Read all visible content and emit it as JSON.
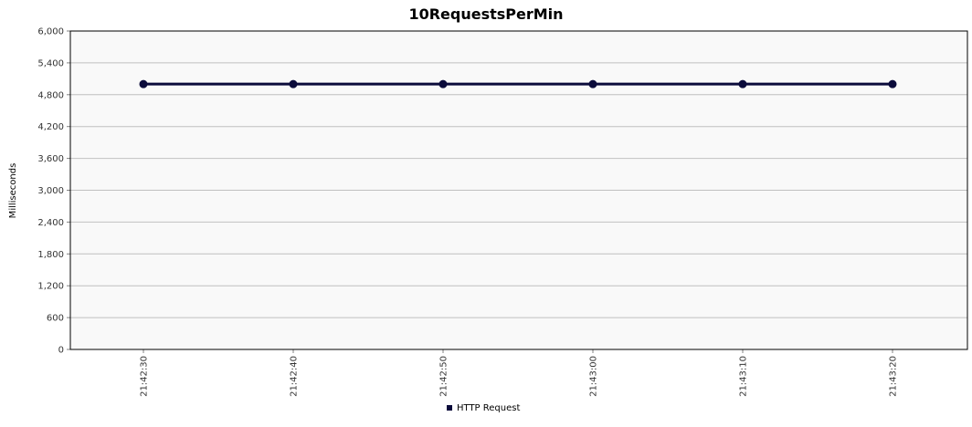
{
  "chart_data": {
    "type": "line",
    "title": "10RequestsPerMin",
    "xlabel": "",
    "ylabel": "Milliseconds",
    "ylim": [
      0,
      6000
    ],
    "yticks": [
      0,
      600,
      1200,
      1800,
      2400,
      3000,
      3600,
      4200,
      4800,
      5400,
      6000
    ],
    "ytick_labels": [
      "0",
      "600",
      "1,200",
      "1,800",
      "2,400",
      "3,000",
      "3,600",
      "4,200",
      "4,800",
      "5,400",
      "6,000"
    ],
    "categories": [
      "21:42:30",
      "21:42:40",
      "21:42:50",
      "21:43:00",
      "21:43:10",
      "21:43:20"
    ],
    "series": [
      {
        "name": "HTTP Request",
        "color": "#0b0b3b",
        "values": [
          5000,
          5000,
          5000,
          5000,
          5000,
          5000
        ]
      }
    ],
    "grid": true,
    "plot_background": "#f9f9f9",
    "grid_color": "#c0c0c0",
    "legend_position": "bottom"
  }
}
